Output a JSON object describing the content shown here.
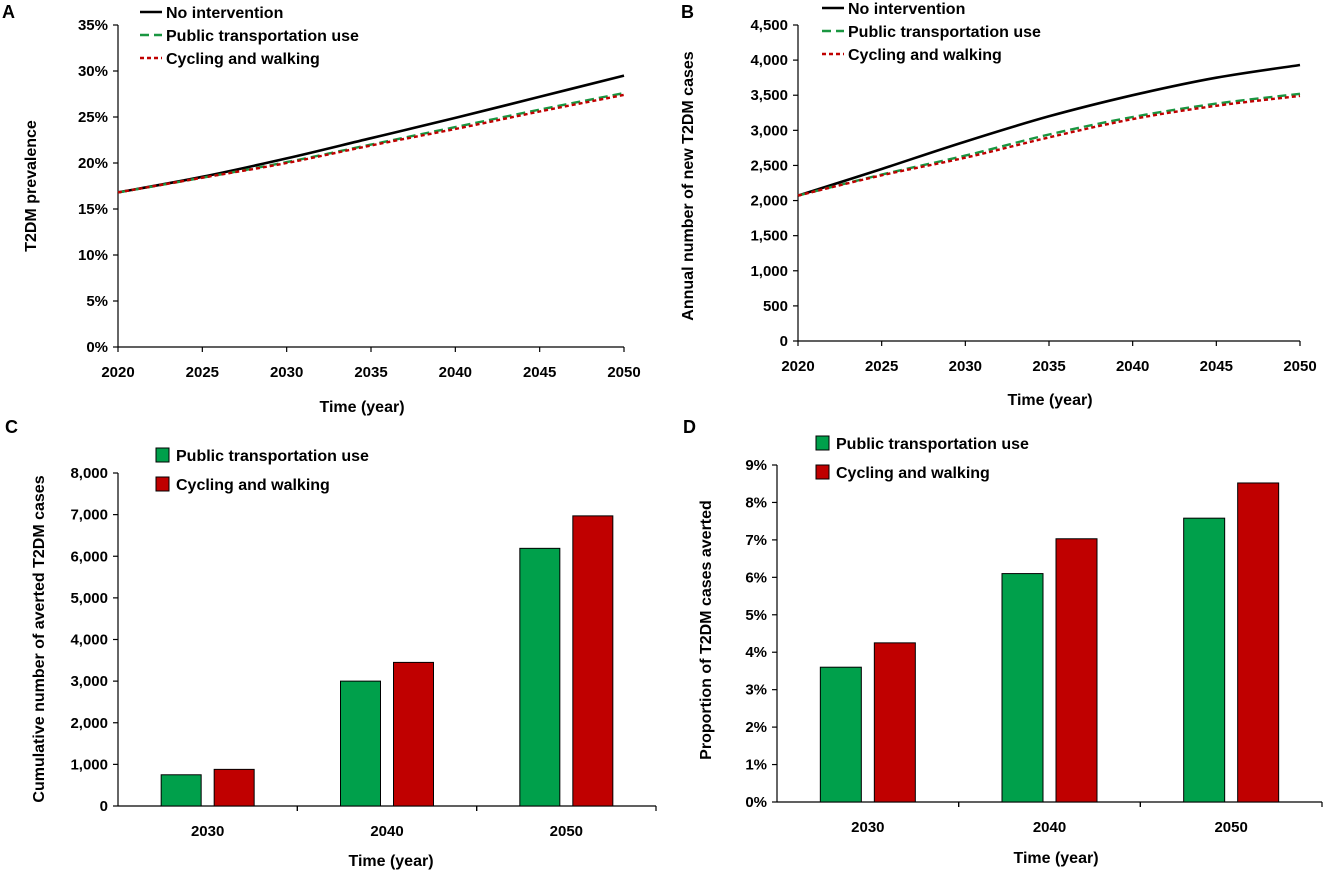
{
  "chart_data": [
    {
      "panel": "A",
      "type": "line",
      "xlabel": "Time (year)",
      "ylabel": "T2DM prevalence",
      "x_ticks": [
        "2020",
        "2025",
        "2030",
        "2035",
        "2040",
        "2045",
        "2050"
      ],
      "y_ticks": [
        "0%",
        "5%",
        "10%",
        "15%",
        "20%",
        "25%",
        "30%",
        "35%"
      ],
      "xlim": [
        2020,
        2050
      ],
      "ylim": [
        0,
        35
      ],
      "legend": "top-left",
      "series": [
        {
          "name": "No intervention",
          "color": "#000000",
          "style": "solid",
          "x": [
            2020,
            2025,
            2030,
            2035,
            2040,
            2045,
            2050
          ],
          "y": [
            16.8,
            18.5,
            20.5,
            22.7,
            24.9,
            27.2,
            29.5
          ]
        },
        {
          "name": "Public transportation use",
          "color": "#1a9641",
          "style": "dashed",
          "x": [
            2020,
            2025,
            2030,
            2035,
            2040,
            2045,
            2050
          ],
          "y": [
            16.8,
            18.4,
            20.1,
            22.0,
            23.9,
            25.8,
            27.6
          ]
        },
        {
          "name": "Cycling and walking",
          "color": "#c00000",
          "style": "dotted",
          "x": [
            2020,
            2025,
            2030,
            2035,
            2040,
            2045,
            2050
          ],
          "y": [
            16.8,
            18.4,
            20.0,
            21.9,
            23.7,
            25.6,
            27.4
          ]
        }
      ]
    },
    {
      "panel": "B",
      "type": "line",
      "xlabel": "Time (year)",
      "ylabel": "Annual number of new T2DM cases",
      "x_ticks": [
        "2020",
        "2025",
        "2030",
        "2035",
        "2040",
        "2045",
        "2050"
      ],
      "y_ticks": [
        "0",
        "500",
        "1,000",
        "1,500",
        "2,000",
        "2,500",
        "3,000",
        "3,500",
        "4,000",
        "4,500"
      ],
      "xlim": [
        2020,
        2050
      ],
      "ylim": [
        0,
        4500
      ],
      "legend": "top-left",
      "series": [
        {
          "name": "No intervention",
          "color": "#000000",
          "style": "solid",
          "x": [
            2020,
            2025,
            2030,
            2035,
            2040,
            2045,
            2050
          ],
          "y": [
            2070,
            2450,
            2840,
            3200,
            3500,
            3750,
            3930
          ]
        },
        {
          "name": "Public transportation use",
          "color": "#1a9641",
          "style": "dashed",
          "x": [
            2020,
            2025,
            2030,
            2035,
            2040,
            2045,
            2050
          ],
          "y": [
            2070,
            2370,
            2640,
            2940,
            3190,
            3380,
            3520
          ]
        },
        {
          "name": "Cycling and walking",
          "color": "#c00000",
          "style": "dotted",
          "x": [
            2020,
            2025,
            2030,
            2035,
            2040,
            2045,
            2050
          ],
          "y": [
            2070,
            2360,
            2610,
            2900,
            3160,
            3350,
            3490
          ]
        }
      ]
    },
    {
      "panel": "C",
      "type": "bar",
      "xlabel": "Time (year)",
      "ylabel": "Cumulative number of averted T2DM cases",
      "categories": [
        "2030",
        "2040",
        "2050"
      ],
      "y_ticks": [
        "0",
        "1,000",
        "2,000",
        "3,000",
        "4,000",
        "5,000",
        "6,000",
        "7,000",
        "8,000"
      ],
      "ylim": [
        0,
        8000
      ],
      "legend": "top-left",
      "series": [
        {
          "name": "Public transportation use",
          "color": "#00a04b",
          "values": [
            750,
            3000,
            6190
          ]
        },
        {
          "name": "Cycling and walking",
          "color": "#c00000",
          "values": [
            880,
            3450,
            6970
          ]
        }
      ]
    },
    {
      "panel": "D",
      "type": "bar",
      "xlabel": "Time (year)",
      "ylabel": "Proportion of T2DM cases averted",
      "categories": [
        "2030",
        "2040",
        "2050"
      ],
      "y_ticks": [
        "0%",
        "1%",
        "2%",
        "3%",
        "4%",
        "5%",
        "6%",
        "7%",
        "8%",
        "9%"
      ],
      "ylim": [
        0,
        9
      ],
      "legend": "top-left",
      "series": [
        {
          "name": "Public transportation use",
          "color": "#00a04b",
          "values": [
            3.6,
            6.1,
            7.58
          ]
        },
        {
          "name": "Cycling and walking",
          "color": "#c00000",
          "values": [
            4.25,
            7.03,
            8.52
          ]
        }
      ]
    }
  ]
}
